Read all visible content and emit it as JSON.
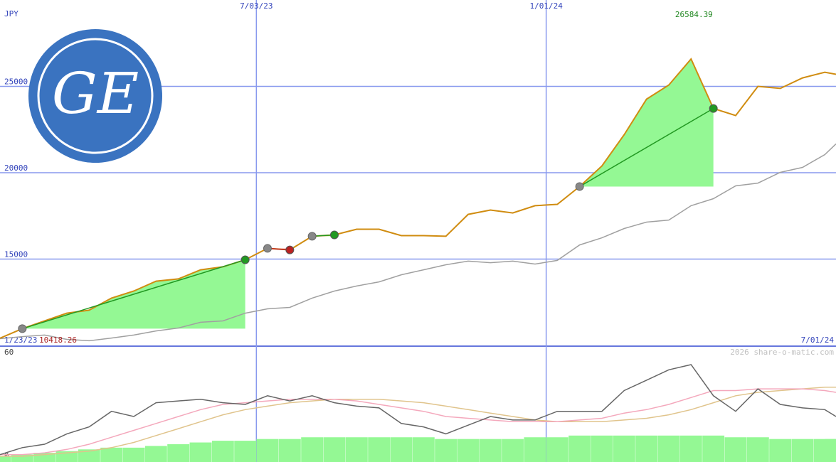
{
  "logo": "GE",
  "chart_data": [
    {
      "type": "line",
      "unit": "JPY",
      "x": [
        "1/23/23",
        "2/06/23",
        "2/20/23",
        "3/06/23",
        "3/20/23",
        "4/03/23",
        "4/17/23",
        "5/01/23",
        "5/15/23",
        "5/29/23",
        "6/12/23",
        "6/26/23",
        "7/10/23",
        "7/24/23",
        "8/07/23",
        "8/21/23",
        "9/04/23",
        "9/18/23",
        "10/02/23",
        "10/16/23",
        "10/30/23",
        "11/13/23",
        "11/27/23",
        "12/11/23",
        "12/25/23",
        "1/08/24",
        "1/22/24",
        "2/05/24",
        "2/19/24",
        "3/04/24",
        "3/18/24",
        "4/01/24",
        "4/15/24",
        "4/29/24",
        "5/13/24",
        "5/27/24",
        "6/10/24",
        "6/24/24",
        "7/01/24"
      ],
      "xlim": [
        "1/23/23",
        "7/01/24"
      ],
      "xticks": [
        "7/03/23",
        "1/01/24"
      ],
      "ylim": [
        10000,
        30000
      ],
      "yticks": [
        15000,
        20000,
        25000
      ],
      "grid": true,
      "series": [
        {
          "color": "#d08c10",
          "values": [
            10418.26,
            10970,
            11420,
            11870,
            12040,
            12740,
            13150,
            13720,
            13850,
            14380,
            14550,
            14960,
            15620,
            15530,
            16320,
            16400,
            16730,
            16730,
            16360,
            16360,
            16320,
            17590,
            17840,
            17670,
            18090,
            18170,
            19200,
            20390,
            22200,
            24260,
            25080,
            26584.39,
            23720,
            23310,
            25000,
            24880,
            25490,
            25820,
            25700
          ]
        },
        {
          "color": "#a0a0a0",
          "values": [
            10390,
            10510,
            10600,
            10350,
            10270,
            10430,
            10600,
            10840,
            11010,
            11340,
            11420,
            11870,
            12120,
            12200,
            12740,
            13150,
            13440,
            13680,
            14090,
            14380,
            14670,
            14880,
            14790,
            14880,
            14710,
            14920,
            15820,
            16230,
            16770,
            17140,
            17260,
            18090,
            18500,
            19240,
            19400,
            20020,
            20310,
            21050,
            21670
          ]
        }
      ],
      "min_index": 0,
      "max_index": 31,
      "trades": [
        {
          "entry": "2/06/23",
          "exit": "6/26/23",
          "color": "#229922",
          "fill": "#94f894"
        },
        {
          "entry": "7/10/23",
          "exit": "7/24/23",
          "color": "#bb2222",
          "fill": "#ffb0b8"
        },
        {
          "entry": "8/07/23",
          "exit": "8/21/23",
          "color": "#229922",
          "fill": "#94f894"
        },
        {
          "entry": "1/22/24",
          "exit": "4/15/24",
          "color": "#229922",
          "fill": "#94f894"
        }
      ],
      "credit": "2026 share-o-matic.com"
    },
    {
      "type": "line",
      "x": [
        "1/23/23",
        "2/06/23",
        "2/20/23",
        "3/06/23",
        "3/20/23",
        "4/03/23",
        "4/17/23",
        "5/01/23",
        "5/15/23",
        "5/29/23",
        "6/12/23",
        "6/26/23",
        "7/10/23",
        "7/24/23",
        "8/07/23",
        "8/21/23",
        "9/04/23",
        "9/18/23",
        "10/02/23",
        "10/16/23",
        "10/30/23",
        "11/13/23",
        "11/27/23",
        "12/11/23",
        "12/25/23",
        "1/08/24",
        "1/22/24",
        "2/05/24",
        "2/19/24",
        "3/04/24",
        "3/18/24",
        "4/01/24",
        "4/15/24",
        "4/29/24",
        "5/13/24",
        "5/27/24",
        "6/10/24",
        "6/24/24",
        "7/01/24"
      ],
      "ylim": [
        0,
        60
      ],
      "yticks": [
        0,
        60
      ],
      "series": [
        {
          "type": "bar",
          "color": "#94f894",
          "values": [
            0,
            1,
            2,
            3,
            4,
            5,
            5,
            6,
            7,
            8,
            9,
            9,
            10,
            10,
            11,
            11,
            11,
            11,
            11,
            11,
            10,
            10,
            10,
            10,
            11,
            11,
            12,
            12,
            12,
            12,
            12,
            12,
            12,
            11,
            11,
            10,
            10,
            10,
            10
          ]
        },
        {
          "color": "#e0c48c",
          "values": [
            0,
            0,
            1,
            2,
            3,
            5,
            8,
            12,
            16,
            20,
            24,
            27,
            29,
            31,
            32,
            33,
            33,
            33,
            32,
            31,
            29,
            27,
            25,
            23,
            21,
            20,
            20,
            20,
            21,
            22,
            24,
            27,
            31,
            35,
            37,
            38,
            39,
            40,
            40
          ]
        },
        {
          "color": "#f4a8bc",
          "values": [
            1,
            1,
            2,
            4,
            7,
            11,
            15,
            19,
            23,
            27,
            30,
            31,
            32,
            33,
            33,
            33,
            32,
            30,
            28,
            26,
            23,
            22,
            21,
            20,
            20,
            20,
            21,
            22,
            25,
            27,
            30,
            34,
            38,
            38,
            39,
            39,
            39,
            38,
            37
          ]
        },
        {
          "color": "#666666",
          "values": [
            1,
            5,
            7,
            13,
            17,
            26,
            23,
            31,
            32,
            33,
            31,
            30,
            35,
            32,
            35,
            31,
            29,
            28,
            19,
            17,
            13,
            18,
            23,
            21,
            21,
            26,
            26,
            26,
            38,
            44,
            50,
            53,
            35,
            26,
            39,
            30,
            28,
            27,
            23
          ]
        }
      ]
    }
  ]
}
